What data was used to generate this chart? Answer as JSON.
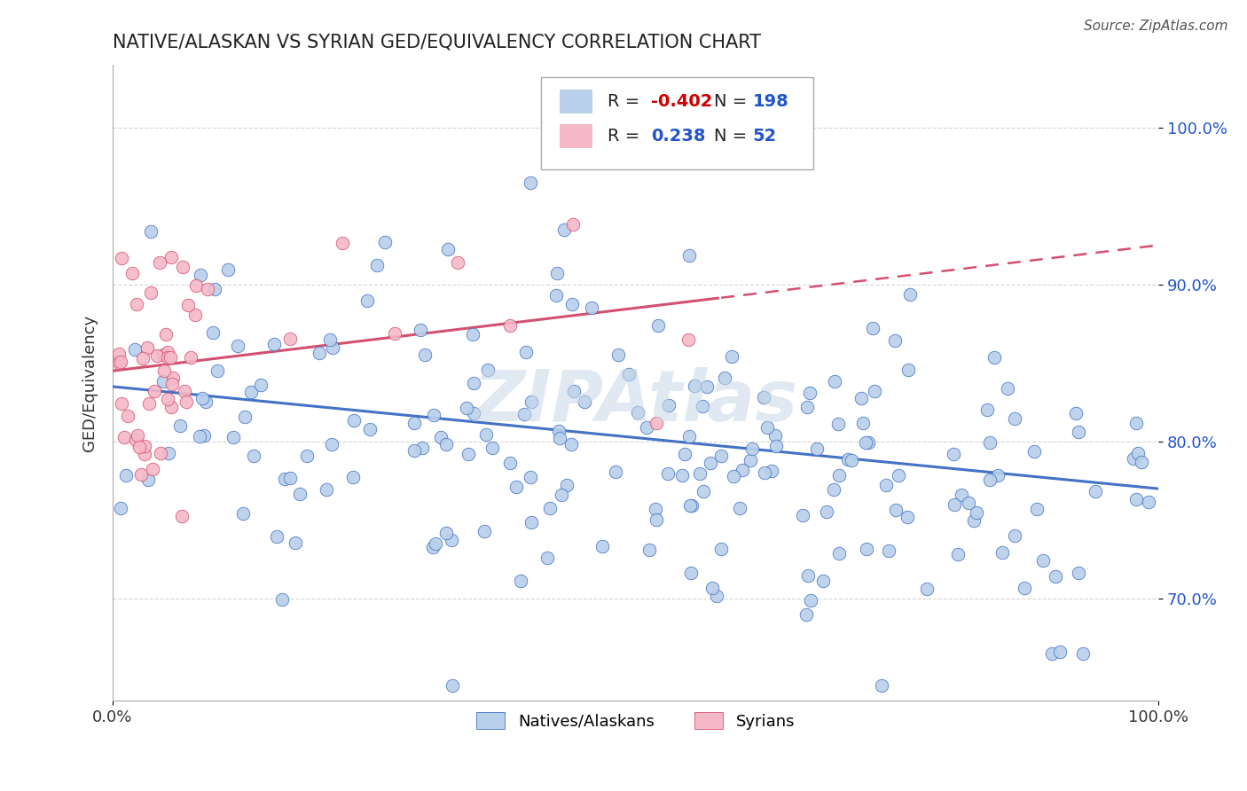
{
  "title": "NATIVE/ALASKAN VS SYRIAN GED/EQUIVALENCY CORRELATION CHART",
  "source": "Source: ZipAtlas.com",
  "ylabel": "GED/Equivalency",
  "y_ticks": [
    0.7,
    0.8,
    0.9,
    1.0
  ],
  "y_tick_labels": [
    "70.0%",
    "80.0%",
    "90.0%",
    "100.0%"
  ],
  "x_lim": [
    0.0,
    1.0
  ],
  "y_lim": [
    0.635,
    1.04
  ],
  "legend_r_blue": "-0.402",
  "legend_n_blue": "198",
  "legend_r_pink": "0.238",
  "legend_n_pink": "52",
  "legend_label_blue": "Natives/Alaskans",
  "legend_label_pink": "Syrians",
  "blue_color": "#b8d0ea",
  "pink_color": "#f5b8c8",
  "blue_line_color": "#4472c4",
  "pink_line_color": "#d45070",
  "blue_slope": -0.065,
  "blue_intercept": 0.835,
  "pink_slope": 0.08,
  "pink_intercept": 0.845,
  "watermark": "ZIPAtlas",
  "background_color": "#ffffff",
  "grid_color": "#cccccc",
  "r_red_color": "#cc0000",
  "n_blue_color": "#2255cc",
  "legend_text_color": "#222222"
}
